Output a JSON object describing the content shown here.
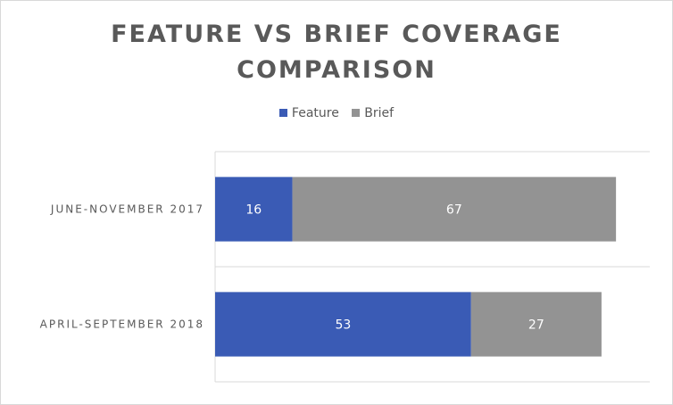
{
  "chart_data": {
    "type": "bar",
    "orientation": "horizontal",
    "stacked": true,
    "title_lines": [
      "FEATURE VS BRIEF COVERAGE",
      "COMPARISON"
    ],
    "categories": [
      "JUNE-NOVEMBER 2017",
      "APRIL-SEPTEMBER 2018"
    ],
    "series": [
      {
        "name": "Feature",
        "values": [
          16,
          53
        ],
        "color": "#3a5bb5"
      },
      {
        "name": "Brief",
        "values": [
          67,
          27
        ],
        "color": "#939393"
      }
    ],
    "xlim": [
      0,
      90
    ],
    "legend_position": "top",
    "grid": true,
    "data_labels": true
  }
}
